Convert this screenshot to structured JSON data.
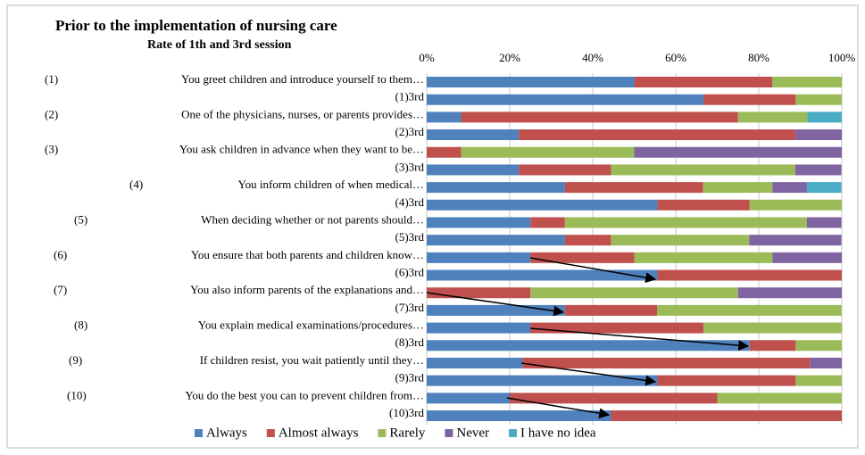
{
  "chart_data": {
    "type": "stacked_barh",
    "title": "Prior to the implementation of nursing care",
    "subtitle": "Rate of 1th and 3rd session",
    "category_numbers": [
      "(1)",
      null,
      "(2)",
      null,
      "(3)",
      null,
      "(4)",
      null,
      "(5)",
      null,
      "(6)",
      null,
      "(7)",
      null,
      "(8)",
      null,
      "(9)",
      null,
      "(10)",
      null
    ],
    "categories": [
      "You greet children and introduce yourself to them…",
      "(1)3rd",
      "One of the physicians, nurses, or parents provides…",
      "(2)3rd",
      "You ask children in advance when they want to be…",
      "(3)3rd",
      "You inform children of when medical…",
      "(4)3rd",
      "When deciding whether or not parents should…",
      "(5)3rd",
      "You ensure that both parents and children know…",
      "(6)3rd",
      "You also inform parents of the explanations and…",
      "(7)3rd",
      "You explain medical examinations/procedures…",
      "(8)3rd",
      "If children resist, you wait patiently until they…",
      "(9)3rd",
      "You do the best you can to prevent children from…",
      "(10)3rd"
    ],
    "series": [
      {
        "name": "Always",
        "color": "#4f81bd",
        "values": [
          50,
          66.7,
          8.3,
          22.2,
          0,
          22.2,
          33.3,
          55.6,
          25,
          33.3,
          25,
          55.6,
          0,
          33.3,
          25,
          77.8,
          23.1,
          55.6,
          20,
          44.4
        ]
      },
      {
        "name": "Almost always",
        "color": "#c0504d",
        "values": [
          33.3,
          22.2,
          66.7,
          66.7,
          8.3,
          22.2,
          33.3,
          22.2,
          8.3,
          11.1,
          25,
          44.4,
          25,
          22.2,
          41.7,
          11.1,
          69.2,
          33.3,
          50,
          55.6
        ]
      },
      {
        "name": "Rarely",
        "color": "#9bbb59",
        "values": [
          16.7,
          11.1,
          16.7,
          0,
          41.7,
          44.4,
          16.7,
          22.2,
          58.3,
          33.3,
          33.3,
          0,
          50,
          44.4,
          33.3,
          11.1,
          0,
          11.1,
          30,
          0
        ]
      },
      {
        "name": "Never",
        "color": "#8064a2",
        "values": [
          0,
          0,
          0,
          11.1,
          50,
          11.1,
          8.3,
          0,
          8.3,
          22.2,
          16.7,
          0,
          25,
          0,
          0,
          0,
          7.7,
          0,
          0,
          0
        ]
      },
      {
        "name": "I have no idea",
        "color": "#4bacc6",
        "values": [
          0,
          0,
          8.3,
          0,
          0,
          0,
          8.3,
          0,
          0,
          0,
          0,
          0,
          0,
          0,
          0,
          0,
          0,
          0,
          0,
          0
        ]
      }
    ],
    "xlim": [
      0,
      100
    ],
    "xticks": [
      {
        "value": 0,
        "label": "0%"
      },
      {
        "value": 20,
        "label": "20%"
      },
      {
        "value": 40,
        "label": "40%"
      },
      {
        "value": 60,
        "label": "60%"
      },
      {
        "value": 80,
        "label": "80%"
      },
      {
        "value": 100,
        "label": "100%"
      }
    ],
    "grid": true,
    "legend": "bottom"
  }
}
